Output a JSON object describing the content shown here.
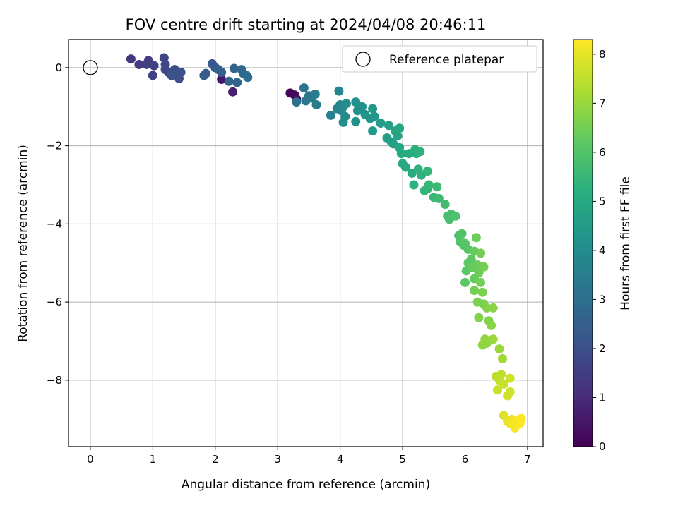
{
  "chart_data": {
    "type": "scatter",
    "title": "FOV centre drift starting at 2024/04/08 20:46:11",
    "xlabel": "Angular distance from reference (arcmin)",
    "ylabel": "Rotation from reference (arcmin)",
    "xlim": [
      -0.35,
      7.25
    ],
    "ylim": [
      -9.7,
      0.72
    ],
    "xticks": [
      0,
      1,
      2,
      3,
      4,
      5,
      6,
      7
    ],
    "yticks": [
      0,
      -2,
      -4,
      -6,
      -8
    ],
    "xtick_labels": [
      "0",
      "1",
      "2",
      "3",
      "4",
      "5",
      "6",
      "7"
    ],
    "ytick_labels": [
      "0",
      "−2",
      "−4",
      "−6",
      "−8"
    ],
    "grid": true,
    "legend": {
      "label": "Reference platepar",
      "placement": "top-right"
    },
    "reference_point": {
      "x": 0,
      "y": 0
    },
    "colorbar": {
      "label": "Hours from first FF file",
      "range": [
        0,
        8.3
      ],
      "ticks": [
        0,
        1,
        2,
        3,
        4,
        5,
        6,
        7,
        8
      ],
      "tick_labels": [
        "0",
        "1",
        "2",
        "3",
        "4",
        "5",
        "6",
        "7",
        "8"
      ],
      "colormap": "viridis"
    },
    "points": [
      [
        3.2,
        -0.65,
        0.1
      ],
      [
        3.27,
        -0.7,
        0.2
      ],
      [
        3.3,
        -0.8,
        0.3
      ],
      [
        2.1,
        -0.3,
        0.5
      ],
      [
        2.28,
        -0.62,
        0.7
      ],
      [
        0.65,
        0.22,
        1.3
      ],
      [
        0.78,
        0.08,
        1.4
      ],
      [
        0.9,
        0.08,
        1.5
      ],
      [
        0.93,
        0.18,
        1.5
      ],
      [
        1.02,
        0.05,
        1.6
      ],
      [
        1.0,
        -0.2,
        1.6
      ],
      [
        1.18,
        0.25,
        1.7
      ],
      [
        1.2,
        0.08,
        1.7
      ],
      [
        1.2,
        -0.05,
        1.8
      ],
      [
        1.25,
        -0.12,
        1.8
      ],
      [
        1.3,
        -0.2,
        1.9
      ],
      [
        1.35,
        -0.05,
        1.9
      ],
      [
        1.38,
        -0.15,
        2.0
      ],
      [
        1.42,
        -0.28,
        2.0
      ],
      [
        1.45,
        -0.12,
        2.1
      ],
      [
        1.3,
        -0.18,
        2.1
      ],
      [
        1.95,
        0.1,
        2.3
      ],
      [
        2.0,
        0.0,
        2.3
      ],
      [
        1.82,
        -0.2,
        2.4
      ],
      [
        1.85,
        -0.15,
        2.4
      ],
      [
        2.05,
        -0.05,
        2.5
      ],
      [
        2.1,
        -0.12,
        2.5
      ],
      [
        2.22,
        -0.35,
        2.6
      ],
      [
        2.3,
        -0.02,
        2.6
      ],
      [
        2.35,
        -0.38,
        2.7
      ],
      [
        2.42,
        -0.05,
        2.8
      ],
      [
        2.45,
        -0.15,
        2.8
      ],
      [
        2.5,
        -0.2,
        2.9
      ],
      [
        2.52,
        -0.25,
        2.9
      ],
      [
        3.3,
        -0.88,
        3.1
      ],
      [
        3.42,
        -0.52,
        3.2
      ],
      [
        3.45,
        -0.85,
        3.2
      ],
      [
        3.5,
        -0.72,
        3.3
      ],
      [
        3.55,
        -0.78,
        3.3
      ],
      [
        3.6,
        -0.68,
        3.4
      ],
      [
        3.62,
        -0.95,
        3.4
      ],
      [
        3.85,
        -1.22,
        3.6
      ],
      [
        3.95,
        -1.05,
        3.7
      ],
      [
        4.0,
        -0.95,
        3.7
      ],
      [
        3.98,
        -0.6,
        3.8
      ],
      [
        4.02,
        -1.1,
        3.8
      ],
      [
        4.05,
        -1.0,
        3.9
      ],
      [
        4.08,
        -1.25,
        3.9
      ],
      [
        4.1,
        -0.92,
        4.0
      ],
      [
        4.05,
        -1.4,
        4.0
      ],
      [
        4.25,
        -0.88,
        4.1
      ],
      [
        4.28,
        -1.1,
        4.1
      ],
      [
        4.25,
        -1.38,
        4.2
      ],
      [
        4.35,
        -1.0,
        4.2
      ],
      [
        4.4,
        -1.2,
        4.3
      ],
      [
        4.48,
        -1.3,
        4.3
      ],
      [
        4.52,
        -1.05,
        4.4
      ],
      [
        4.55,
        -1.25,
        4.4
      ],
      [
        4.52,
        -1.62,
        4.5
      ],
      [
        4.65,
        -1.42,
        4.5
      ],
      [
        4.75,
        -1.8,
        4.6
      ],
      [
        4.78,
        -1.48,
        4.6
      ],
      [
        4.82,
        -1.9,
        4.7
      ],
      [
        4.85,
        -1.95,
        4.7
      ],
      [
        4.88,
        -1.62,
        4.8
      ],
      [
        4.92,
        -1.75,
        4.8
      ],
      [
        4.95,
        -1.55,
        4.9
      ],
      [
        4.95,
        -2.05,
        4.9
      ],
      [
        4.98,
        -2.2,
        5.0
      ],
      [
        5.0,
        -2.45,
        5.0
      ],
      [
        5.05,
        -2.55,
        5.0
      ],
      [
        5.1,
        -2.2,
        5.1
      ],
      [
        5.15,
        -2.7,
        5.1
      ],
      [
        5.2,
        -2.1,
        5.2
      ],
      [
        5.22,
        -2.2,
        5.2
      ],
      [
        5.25,
        -2.6,
        5.3
      ],
      [
        5.28,
        -2.15,
        5.3
      ],
      [
        5.3,
        -2.75,
        5.3
      ],
      [
        5.18,
        -3.0,
        5.3
      ],
      [
        5.35,
        -3.15,
        5.4
      ],
      [
        5.4,
        -3.1,
        5.4
      ],
      [
        5.4,
        -2.65,
        5.4
      ],
      [
        5.42,
        -3.0,
        5.5
      ],
      [
        5.5,
        -3.32,
        5.5
      ],
      [
        5.55,
        -3.05,
        5.6
      ],
      [
        5.58,
        -3.35,
        5.6
      ],
      [
        5.68,
        -3.5,
        5.7
      ],
      [
        5.72,
        -3.8,
        5.7
      ],
      [
        5.75,
        -3.88,
        5.8
      ],
      [
        5.78,
        -3.75,
        5.8
      ],
      [
        5.85,
        -3.8,
        5.9
      ],
      [
        5.9,
        -4.3,
        5.9
      ],
      [
        5.92,
        -4.45,
        6.0
      ],
      [
        5.95,
        -4.25,
        6.0
      ],
      [
        5.98,
        -4.55,
        6.0
      ],
      [
        6.0,
        -4.5,
        6.1
      ],
      [
        6.05,
        -4.65,
        6.1
      ],
      [
        6.02,
        -5.2,
        6.1
      ],
      [
        6.05,
        -5.0,
        6.2
      ],
      [
        6.0,
        -5.5,
        6.2
      ],
      [
        6.1,
        -4.9,
        6.2
      ],
      [
        6.12,
        -5.12,
        6.3
      ],
      [
        6.15,
        -4.7,
        6.3
      ],
      [
        6.15,
        -5.4,
        6.3
      ],
      [
        6.18,
        -4.35,
        6.4
      ],
      [
        6.2,
        -5.05,
        6.4
      ],
      [
        6.22,
        -5.25,
        6.4
      ],
      [
        6.25,
        -4.75,
        6.5
      ],
      [
        6.15,
        -5.7,
        6.5
      ],
      [
        6.25,
        -5.5,
        6.5
      ],
      [
        6.3,
        -5.1,
        6.5
      ],
      [
        6.2,
        -6.0,
        6.6
      ],
      [
        6.28,
        -5.75,
        6.6
      ],
      [
        6.3,
        -6.05,
        6.6
      ],
      [
        6.22,
        -6.4,
        6.7
      ],
      [
        6.35,
        -6.15,
        6.7
      ],
      [
        6.38,
        -6.48,
        6.7
      ],
      [
        6.42,
        -6.6,
        6.8
      ],
      [
        6.45,
        -6.15,
        6.8
      ],
      [
        6.32,
        -6.95,
        6.9
      ],
      [
        6.28,
        -7.1,
        6.9
      ],
      [
        6.35,
        -7.05,
        6.9
      ],
      [
        6.45,
        -6.95,
        7.0
      ],
      [
        6.55,
        -7.2,
        7.0
      ],
      [
        6.6,
        -7.45,
        7.1
      ],
      [
        6.5,
        -7.9,
        7.4
      ],
      [
        6.55,
        -8.0,
        7.5
      ],
      [
        6.58,
        -7.85,
        7.5
      ],
      [
        6.62,
        -8.1,
        7.6
      ],
      [
        6.52,
        -8.25,
        7.6
      ],
      [
        6.68,
        -8.4,
        7.7
      ],
      [
        6.72,
        -8.3,
        7.7
      ],
      [
        6.72,
        -7.95,
        7.7
      ],
      [
        6.62,
        -8.9,
        7.9
      ],
      [
        6.68,
        -9.05,
        8.0
      ],
      [
        6.72,
        -9.1,
        8.1
      ],
      [
        6.75,
        -9.0,
        8.1
      ],
      [
        6.78,
        -9.15,
        8.2
      ],
      [
        6.8,
        -9.22,
        8.2
      ],
      [
        6.82,
        -9.05,
        8.2
      ],
      [
        6.88,
        -9.1,
        8.3
      ],
      [
        6.9,
        -8.98,
        8.3
      ]
    ]
  }
}
